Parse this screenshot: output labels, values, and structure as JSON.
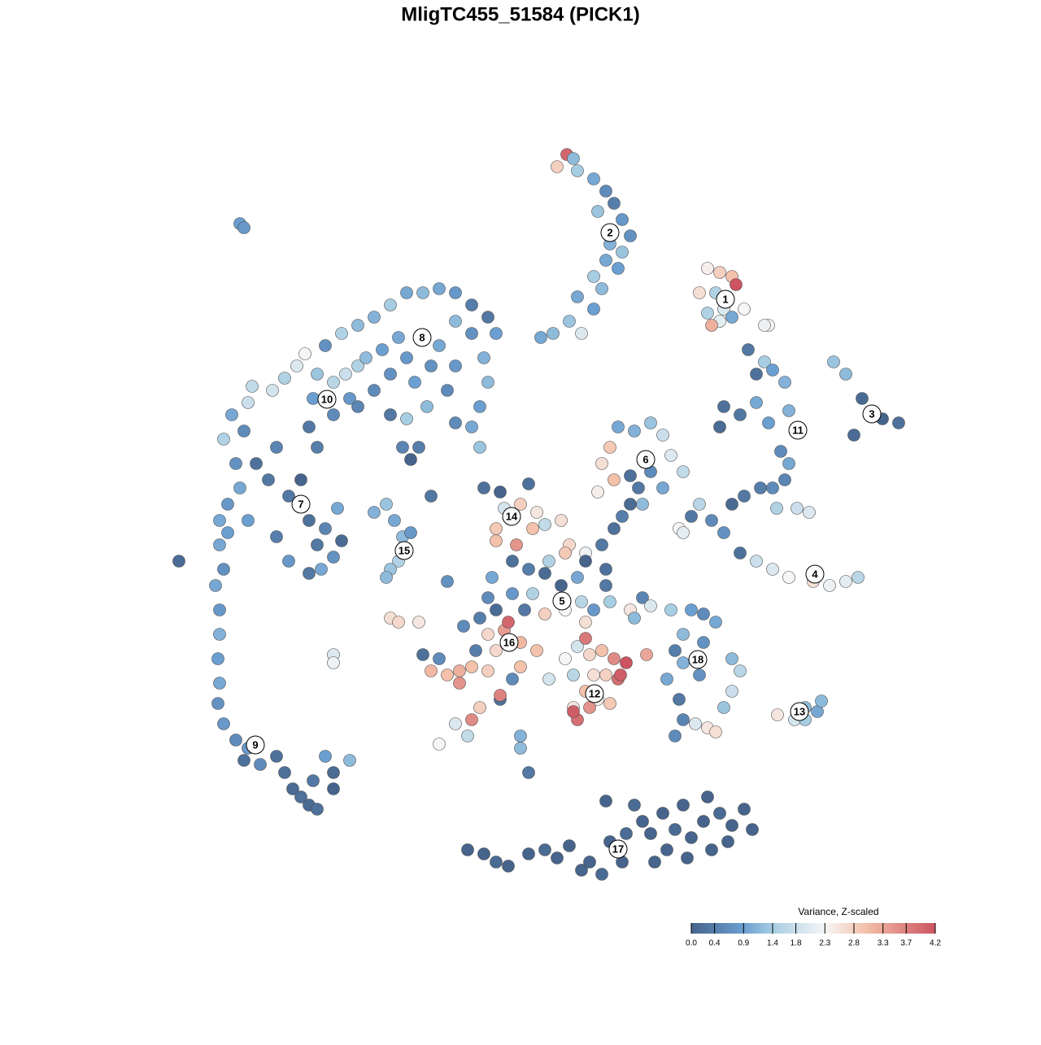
{
  "chart_data": {
    "type": "scatter",
    "title": "MligTC455_51584 (PICK1)",
    "xlim": [
      0,
      96
    ],
    "ylim": [
      0,
      96
    ],
    "x": [
      52.7,
      53.5,
      51.5,
      54,
      56,
      57.5,
      58.5,
      56.5,
      59.5,
      60.5,
      58,
      59.5,
      57.5,
      59,
      56,
      57,
      54,
      56,
      53,
      51,
      54.5,
      49.5,
      70,
      71.5,
      73,
      69,
      71,
      73.5,
      72,
      70,
      71.5,
      73,
      70.5,
      74.5,
      77.5,
      75,
      77,
      76,
      78,
      79.5,
      72,
      74,
      76,
      77.5,
      80,
      71.5,
      79,
      80,
      79.5,
      78,
      76.5,
      74.5,
      73,
      78.5,
      81,
      82.5,
      85.5,
      87,
      89,
      90,
      91.5,
      93.5,
      88,
      69,
      70.5,
      72,
      74,
      76,
      78,
      80,
      83,
      85,
      87,
      88.5,
      66.5,
      68,
      59,
      61,
      63,
      64.5,
      65.5,
      67,
      58,
      57,
      58.5,
      56.5,
      60.5,
      61.5,
      63,
      62,
      64.5,
      42.5,
      44.5,
      48,
      47,
      45,
      49,
      44,
      48.5,
      44,
      46.5,
      50,
      52,
      53,
      55,
      57,
      58.5,
      59.5,
      60.5,
      57.5,
      55,
      52.5,
      50.5,
      46,
      48,
      50,
      52,
      54,
      48.5,
      46,
      43,
      44,
      47.5,
      50,
      52.5,
      54.5,
      56,
      58,
      60.5,
      61,
      62,
      55,
      42,
      40,
      38,
      43.5,
      57.5,
      35,
      37,
      38,
      36,
      39.5,
      41,
      43,
      44,
      45,
      47,
      49,
      43,
      41.5,
      47,
      46,
      44.5,
      42,
      41,
      44.5,
      39,
      40.5,
      37,
      39.5,
      45.5,
      52.5,
      54,
      55.5,
      57,
      58.5,
      60,
      59,
      57.5,
      56,
      53.5,
      55,
      56.5,
      58,
      53.5,
      54,
      53.5,
      55.5,
      59.3,
      55,
      50.5,
      62.5,
      63,
      65.5,
      68,
      69.5,
      71,
      67,
      69.5,
      66,
      67,
      65,
      69,
      73,
      74,
      73,
      66.5,
      67,
      68.5,
      70,
      71,
      72,
      66,
      78.6,
      80.7,
      82,
      83.5,
      84,
      82,
      40.5,
      42.5,
      44,
      45.5,
      48,
      50,
      51.5,
      53,
      54.5,
      55.5,
      57,
      58,
      59.5,
      61,
      62,
      63,
      64.5,
      66,
      67,
      68,
      69.5,
      70.5,
      71.5,
      73,
      74.5,
      75.5,
      70,
      67.5,
      63.5,
      57.5,
      60,
      65,
      72.5,
      10,
      11,
      5,
      10,
      10.5,
      9.5,
      10,
      10,
      9.8,
      10,
      9.8,
      10.5,
      12,
      13.5,
      13,
      15,
      17,
      18,
      19,
      20,
      21.5,
      23,
      21,
      24,
      26,
      24,
      22,
      10.5,
      11.5,
      13.5,
      13,
      12,
      12.5,
      11,
      13.5,
      16,
      14.5,
      17,
      18.5,
      20,
      21,
      22,
      23,
      21,
      18.5,
      24,
      25,
      17,
      24.5,
      22.5,
      14,
      16.5,
      18,
      19.5,
      20.5,
      22,
      21.5,
      24,
      25.5,
      27,
      26,
      24,
      21,
      22,
      28,
      30,
      32,
      33,
      31,
      29,
      27,
      34,
      36,
      37,
      39,
      38,
      35.5,
      33,
      31,
      27,
      29,
      31,
      33,
      35,
      37,
      39,
      41,
      43,
      44,
      41,
      39,
      42.5,
      43,
      42,
      41,
      39,
      42,
      25,
      23,
      29,
      30.5,
      31.5,
      32.5,
      33.5,
      32,
      31,
      30.5,
      36,
      32.5,
      34.5,
      33.5,
      24,
      24,
      31,
      32,
      34.5,
      12.5,
      13,
      47,
      47,
      48,
      67,
      77
    ],
    "y": [
      91,
      90.5,
      89.5,
      89,
      88,
      86.5,
      85,
      84,
      83,
      81,
      80,
      79,
      78,
      77,
      76,
      74.5,
      73.5,
      72,
      70.5,
      69,
      69,
      68.5,
      77,
      76.5,
      76,
      74,
      74,
      75,
      72,
      71.5,
      70.5,
      71,
      70,
      72,
      70,
      67,
      65.5,
      64,
      64.5,
      63,
      60,
      59,
      60.5,
      58,
      59.5,
      57.5,
      54.5,
      53,
      51,
      50,
      50,
      49,
      48,
      47.5,
      47.5,
      47,
      65.5,
      64,
      61,
      59,
      58.5,
      58,
      56.5,
      48,
      46,
      44.5,
      42,
      41,
      40,
      39,
      38.5,
      38,
      38.5,
      39,
      45,
      46.5,
      57.5,
      57,
      58,
      56.5,
      54,
      52,
      55,
      53,
      51,
      49.5,
      51.5,
      50,
      52,
      48,
      50,
      50,
      49.5,
      50.5,
      48,
      47.5,
      47,
      45,
      45,
      43.5,
      43,
      45.5,
      46,
      43,
      42,
      43,
      45,
      46.5,
      48,
      40,
      41,
      42,
      41,
      41,
      40,
      39.5,
      38,
      39,
      37,
      37,
      36.5,
      35,
      35,
      34.5,
      35,
      36,
      35,
      36,
      35,
      34,
      36.5,
      33.5,
      34,
      33,
      38.5,
      39,
      38,
      29.5,
      29,
      27,
      27.5,
      27.5,
      28,
      27.5,
      30,
      32.5,
      31,
      30,
      32,
      30,
      28,
      26.5,
      24,
      23,
      21.5,
      24.5,
      21,
      19.5,
      18.5,
      26,
      33.5,
      29,
      30.5,
      29.5,
      30,
      29,
      28.5,
      26.5,
      27,
      27,
      27,
      25,
      24,
      23.5,
      23,
      21.5,
      22.5,
      23,
      27,
      31.5,
      26.5,
      29.5,
      35.5,
      35,
      35,
      34.5,
      33.5,
      32,
      31,
      30,
      28.5,
      26.5,
      27,
      29,
      27.5,
      25,
      24,
      21.5,
      21,
      20.5,
      20,
      23,
      19.5,
      22.1,
      21.5,
      23,
      22.5,
      23.8,
      21.5,
      5.5,
      5,
      4,
      3.5,
      5,
      5.5,
      4.5,
      6,
      3,
      4,
      2.5,
      6.5,
      4,
      11,
      9,
      7.5,
      10,
      8,
      11,
      7,
      9,
      5.5,
      10,
      8.5,
      10.5,
      8,
      12,
      4.5,
      4,
      11.5,
      7.5,
      5.5,
      6.5,
      46,
      44.5,
      41,
      43,
      40,
      38,
      35,
      32,
      29,
      26,
      23.5,
      21,
      19,
      18,
      16.5,
      16,
      17,
      15,
      13,
      12,
      14,
      17,
      11,
      15,
      16.5,
      13,
      10.5,
      56,
      59,
      60.5,
      57,
      53,
      50,
      48,
      46,
      51,
      53,
      55,
      49,
      51,
      46,
      43,
      45,
      39.5,
      41,
      41.5,
      43.5,
      44,
      47.5,
      40,
      62.5,
      62,
      63.5,
      65,
      66.5,
      64,
      61,
      63,
      64,
      65,
      61,
      59,
      57.5,
      55,
      66,
      67,
      68.5,
      66,
      64,
      62,
      60,
      63,
      65,
      67.5,
      65,
      62,
      60,
      58.5,
      59,
      70,
      71,
      72.5,
      74,
      74,
      74.5,
      74,
      72.5,
      71,
      69,
      69,
      70.5,
      66,
      63,
      60,
      57.5,
      58,
      55,
      69,
      67.5,
      47,
      48,
      46,
      44,
      44.5,
      41,
      40,
      39,
      49,
      55,
      55,
      53.5,
      29.5,
      28.5,
      34,
      33.5,
      33.5,
      82.5,
      82,
      19.5,
      18,
      15,
      44.5,
      70
    ],
    "values": [
      4.0,
      1.2,
      2.8,
      1.4,
      1.0,
      0.6,
      0.4,
      1.3,
      0.8,
      0.7,
      1.1,
      1.3,
      1.0,
      0.9,
      1.4,
      1.2,
      1.0,
      0.9,
      1.3,
      1.2,
      2.0,
      1.0,
      2.4,
      2.8,
      3.0,
      2.6,
      1.5,
      4.2,
      2.0,
      1.5,
      2.1,
      1.0,
      3.2,
      2.3,
      2.3,
      0.3,
      1.4,
      0.2,
      0.9,
      1.1,
      0.2,
      0.3,
      1.0,
      0.9,
      1.1,
      0.1,
      0.6,
      1.0,
      0.5,
      0.6,
      0.4,
      0.3,
      0.1,
      1.5,
      1.8,
      2.0,
      1.3,
      1.2,
      0.1,
      0.2,
      0.0,
      0.2,
      0.1,
      1.6,
      0.6,
      0.7,
      0.2,
      1.8,
      2.0,
      2.3,
      2.6,
      2.2,
      2.1,
      1.6,
      2.3,
      0.3,
      1.0,
      1.1,
      1.3,
      1.8,
      2.0,
      1.7,
      2.9,
      2.6,
      3.0,
      2.4,
      0.2,
      0.3,
      0.6,
      1.2,
      1.0,
      0.2,
      0.0,
      0.2,
      2.8,
      1.9,
      2.5,
      2.9,
      3.0,
      3.0,
      3.5,
      1.7,
      2.6,
      2.7,
      2.2,
      0.3,
      0.2,
      0.4,
      0.1,
      0.2,
      0.0,
      2.9,
      1.5,
      0.2,
      0.4,
      0.1,
      0.0,
      1.0,
      1.5,
      0.8,
      0.6,
      0.1,
      0.3,
      2.8,
      2.3,
      1.6,
      0.8,
      1.4,
      2.5,
      1.2,
      0.5,
      2.6,
      0.4,
      0.6,
      0.7,
      1.0,
      0.3,
      0.2,
      0.6,
      3.0,
      3.1,
      3.2,
      3.0,
      2.8,
      2.7,
      3.4,
      3.1,
      3.0,
      2.7,
      0.4,
      3.0,
      0.6,
      0.2,
      2.8,
      3.6,
      3.7,
      2.0,
      1.7,
      2.3,
      3.5,
      4.0,
      2.3,
      1.9,
      2.7,
      3.0,
      3.6,
      4.2,
      3.9,
      2.8,
      2.6,
      1.6,
      3.0,
      2.4,
      2.9,
      2.5,
      3.9,
      4.1,
      3.5,
      4.1,
      3.8,
      1.9,
      3.3,
      2.0,
      1.4,
      0.9,
      0.6,
      1.0,
      1.2,
      0.7,
      0.4,
      1.1,
      1.0,
      0.7,
      1.2,
      1.6,
      1.8,
      0.3,
      0.5,
      2.0,
      2.5,
      2.6,
      1.3,
      0.6,
      2.5,
      1.9,
      1.2,
      1.0,
      1.2,
      1.4,
      0.0,
      0.0,
      0.1,
      0.0,
      0.0,
      0.1,
      0.0,
      0.0,
      0.0,
      0.0,
      0.1,
      0.0,
      0.0,
      0.1,
      0.0,
      0.0,
      0.0,
      0.1,
      0.0,
      0.0,
      0.0,
      0.0,
      0.1,
      0.0,
      0.0,
      0.0,
      0.0,
      0.0,
      0.0,
      0.0,
      0.1,
      0.0,
      0.0,
      1.0,
      0.9,
      0.1,
      1.0,
      0.7,
      1.0,
      0.8,
      1.1,
      0.9,
      1.0,
      0.7,
      0.8,
      0.6,
      0.8,
      0.2,
      0.6,
      0.2,
      0.2,
      0.1,
      0.2,
      0.3,
      0.9,
      0.1,
      0.1,
      1.2,
      0.0,
      0.2,
      1.5,
      1.0,
      1.8,
      0.6,
      0.7,
      1.0,
      0.8,
      0.9,
      0.3,
      0.2,
      0.5,
      0.3,
      0.0,
      0.2,
      0.3,
      0.5,
      0.3,
      0.8,
      0.7,
      0.1,
      0.4,
      1.0,
      1.0,
      1.7,
      1.9,
      1.5,
      2.0,
      2.3,
      1.3,
      0.9,
      1.6,
      1.8,
      1.5,
      0.8,
      0.6,
      0.3,
      0.4,
      1.2,
      0.9,
      1.0,
      0.8,
      0.7,
      0.6,
      0.5,
      0.9,
      0.7,
      1.0,
      0.8,
      0.6,
      1.2,
      1.4,
      0.3,
      1.2,
      1.1,
      1.4,
      1.0,
      1.2,
      1.0,
      0.8,
      0.4,
      0.3,
      0.9,
      0.7,
      1.2,
      1.1,
      1.2,
      0.9,
      1.0,
      0.6,
      1.3,
      1.5,
      0.7,
      1.1,
      1.3,
      1.0,
      1.2,
      0.8,
      1.5,
      1.3,
      1.2,
      0.3,
      0.5,
      0.4,
      0.0,
      2.0,
      2.2,
      2.6,
      2.7,
      2.5,
      0.9,
      0.8,
      1.1,
      1.2,
      0.3,
      2.1,
      2.2
    ],
    "clusters": {
      "labels": [
        "1",
        "2",
        "3",
        "4",
        "5",
        "6",
        "7",
        "8",
        "9",
        "10",
        "11",
        "12",
        "13",
        "14",
        "15",
        "16",
        "17",
        "18"
      ],
      "x": [
        72.2,
        58.0,
        90.2,
        83.2,
        52.1,
        62.4,
        20.0,
        34.9,
        14.4,
        23.2,
        81.1,
        56.1,
        81.3,
        45.9,
        32.7,
        45.6,
        59.0,
        68.8
      ],
      "y": [
        73.2,
        81.4,
        59.1,
        39.4,
        36.1,
        53.5,
        48.0,
        68.5,
        18.4,
        60.9,
        57.1,
        24.7,
        22.5,
        46.5,
        42.3,
        31.0,
        5.6,
        28.9
      ]
    },
    "colorscale": [
      [
        0,
        "#46648c"
      ],
      [
        0.9,
        "#6b9fd1"
      ],
      [
        1.4,
        "#a7cde2"
      ],
      [
        2.3,
        "#f6f6f6"
      ],
      [
        3.0,
        "#f4c1aa"
      ],
      [
        4.2,
        "#cc5461"
      ]
    ],
    "colorbar": {
      "title": "Variance, Z-scaled",
      "range": [
        0,
        4.2
      ],
      "ticks": [
        {
          "value": 0,
          "label": "0.0"
        },
        0.4,
        0.9,
        1.4,
        1.8,
        2.3,
        2.8,
        3.3,
        3.7,
        4.2
      ]
    }
  }
}
